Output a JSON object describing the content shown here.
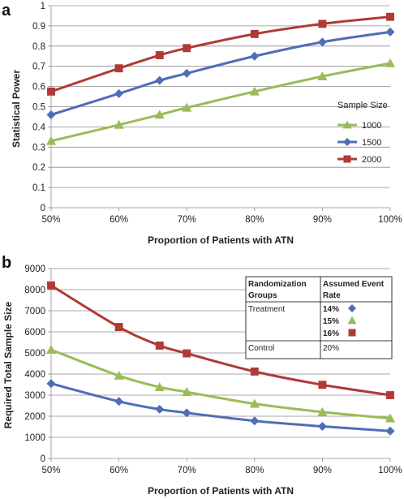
{
  "panels": [
    {
      "label": "a"
    },
    {
      "label": "b"
    }
  ],
  "chart_data": [
    {
      "type": "line",
      "panel": "a",
      "xlabel": "Proportion of Patients with ATN",
      "ylabel": "Statistical Power",
      "xlim": [
        0.5,
        1.0
      ],
      "xticks": [
        0.5,
        0.6,
        0.7,
        0.8,
        0.9,
        1.0
      ],
      "xtick_labels": [
        "50%",
        "60%",
        "70%",
        "80%",
        "90%",
        "100%"
      ],
      "ylim": [
        0,
        1
      ],
      "yticks": [
        0,
        0.1,
        0.2,
        0.3,
        0.4,
        0.5,
        0.6,
        0.7,
        0.8,
        0.9,
        1
      ],
      "ytick_labels": [
        "0",
        "0.1",
        "0.2",
        "0.3",
        "0.4",
        "0.5",
        "0.6",
        "0.7",
        "0.8",
        "0.9",
        "1"
      ],
      "grid": true,
      "legend_title": "Sample Size",
      "legend_position": "right",
      "series": [
        {
          "name": "1000",
          "color": "#9bbb59",
          "marker": "triangle",
          "x": [
            0.5,
            0.6,
            0.66,
            0.7,
            0.8,
            0.9,
            1.0
          ],
          "y": [
            0.33,
            0.41,
            0.46,
            0.495,
            0.575,
            0.65,
            0.715
          ]
        },
        {
          "name": "1500",
          "color": "#4f6db8",
          "marker": "diamond",
          "x": [
            0.5,
            0.6,
            0.66,
            0.7,
            0.8,
            0.9,
            1.0
          ],
          "y": [
            0.46,
            0.565,
            0.63,
            0.665,
            0.75,
            0.82,
            0.87
          ]
        },
        {
          "name": "2000",
          "color": "#b03a36",
          "marker": "square",
          "x": [
            0.5,
            0.6,
            0.66,
            0.7,
            0.8,
            0.9,
            1.0
          ],
          "y": [
            0.575,
            0.69,
            0.755,
            0.79,
            0.86,
            0.91,
            0.945
          ]
        }
      ]
    },
    {
      "type": "line",
      "panel": "b",
      "xlabel": "Proportion of Patients with ATN",
      "ylabel": "Required Total Sample Size",
      "xlim": [
        0.5,
        1.0
      ],
      "xticks": [
        0.5,
        0.6,
        0.7,
        0.8,
        0.9,
        1.0
      ],
      "xtick_labels": [
        "50%",
        "60%",
        "70%",
        "80%",
        "90%",
        "100%"
      ],
      "ylim": [
        0,
        9000
      ],
      "yticks": [
        0,
        1000,
        2000,
        3000,
        4000,
        5000,
        6000,
        7000,
        8000,
        9000
      ],
      "ytick_labels": [
        "0",
        "1000",
        "2000",
        "3000",
        "4000",
        "5000",
        "6000",
        "7000",
        "8000",
        "9000"
      ],
      "grid": true,
      "series": [
        {
          "name": "14%",
          "color": "#4f6db8",
          "marker": "diamond",
          "x": [
            0.5,
            0.6,
            0.66,
            0.7,
            0.8,
            0.9,
            1.0
          ],
          "y": [
            3550,
            2700,
            2330,
            2160,
            1780,
            1520,
            1300
          ]
        },
        {
          "name": "15%",
          "color": "#9bbb59",
          "marker": "triangle",
          "x": [
            0.5,
            0.6,
            0.66,
            0.7,
            0.8,
            0.9,
            1.0
          ],
          "y": [
            5150,
            3920,
            3380,
            3150,
            2590,
            2200,
            1900
          ]
        },
        {
          "name": "16%",
          "color": "#b03a36",
          "marker": "square",
          "x": [
            0.5,
            0.6,
            0.66,
            0.7,
            0.8,
            0.9,
            1.0
          ],
          "y": [
            8200,
            6230,
            5350,
            4980,
            4120,
            3490,
            3000
          ]
        }
      ],
      "legend_table": {
        "header_col1_line1": "Randomization",
        "header_col1_line2": "Groups",
        "header_col2_line1": "Assumed Event",
        "header_col2_line2": "Rate",
        "treatment_label": "Treatment",
        "control_label": "Control",
        "control_rate": "20%",
        "rates": [
          "14%",
          "15%",
          "16%"
        ]
      }
    }
  ]
}
